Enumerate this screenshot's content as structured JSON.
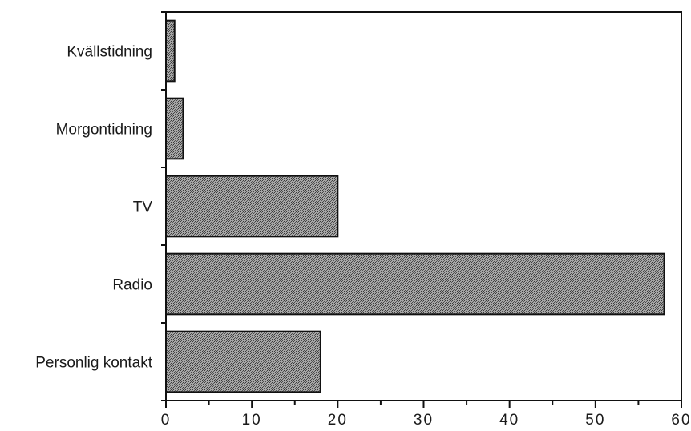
{
  "chart_data": {
    "type": "bar",
    "orientation": "horizontal",
    "title": "",
    "xlabel": "",
    "ylabel": "",
    "categories": [
      "Kvällstidning",
      "Morgontidning",
      "TV",
      "Radio",
      "Personlig kontakt"
    ],
    "values": [
      1,
      2,
      20,
      58,
      18
    ],
    "xlim": [
      0,
      60
    ],
    "xticks": [
      0,
      10,
      20,
      30,
      40,
      50,
      60
    ],
    "grid": false,
    "legend": "none",
    "bar_fill": "#8c8c8c",
    "bar_stroke": "#111111"
  }
}
